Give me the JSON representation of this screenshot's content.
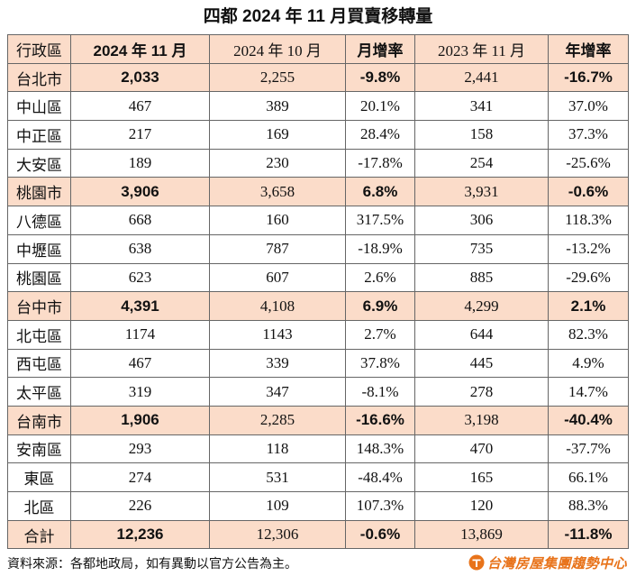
{
  "chart_data": {
    "type": "table",
    "title": "四都 2024 年 11 月買賣移轉量",
    "columns": [
      "行政區",
      "2024 年 11 月",
      "2024 年 10 月",
      "月增率",
      "2023 年 11 月",
      "年增率"
    ],
    "rows": [
      {
        "name": "台北市",
        "values": [
          "2,033",
          "2,255",
          "-9.8%",
          "2,441",
          "-16.7%"
        ],
        "highlight": true
      },
      {
        "name": "中山區",
        "values": [
          "467",
          "389",
          "20.1%",
          "341",
          "37.0%"
        ],
        "highlight": false
      },
      {
        "name": "中正區",
        "values": [
          "217",
          "169",
          "28.4%",
          "158",
          "37.3%"
        ],
        "highlight": false
      },
      {
        "name": "大安區",
        "values": [
          "189",
          "230",
          "-17.8%",
          "254",
          "-25.6%"
        ],
        "highlight": false
      },
      {
        "name": "桃園市",
        "values": [
          "3,906",
          "3,658",
          "6.8%",
          "3,931",
          "-0.6%"
        ],
        "highlight": true
      },
      {
        "name": "八德區",
        "values": [
          "668",
          "160",
          "317.5%",
          "306",
          "118.3%"
        ],
        "highlight": false
      },
      {
        "name": "中壢區",
        "values": [
          "638",
          "787",
          "-18.9%",
          "735",
          "-13.2%"
        ],
        "highlight": false
      },
      {
        "name": "桃園區",
        "values": [
          "623",
          "607",
          "2.6%",
          "885",
          "-29.6%"
        ],
        "highlight": false
      },
      {
        "name": "台中市",
        "values": [
          "4,391",
          "4,108",
          "6.9%",
          "4,299",
          "2.1%"
        ],
        "highlight": true
      },
      {
        "name": "北屯區",
        "values": [
          "1174",
          "1143",
          "2.7%",
          "644",
          "82.3%"
        ],
        "highlight": false
      },
      {
        "name": "西屯區",
        "values": [
          "467",
          "339",
          "37.8%",
          "445",
          "4.9%"
        ],
        "highlight": false
      },
      {
        "name": "太平區",
        "values": [
          "319",
          "347",
          "-8.1%",
          "278",
          "14.7%"
        ],
        "highlight": false
      },
      {
        "name": "台南市",
        "values": [
          "1,906",
          "2,285",
          "-16.6%",
          "3,198",
          "-40.4%"
        ],
        "highlight": true
      },
      {
        "name": "安南區",
        "values": [
          "293",
          "118",
          "148.3%",
          "470",
          "-37.7%"
        ],
        "highlight": false
      },
      {
        "name": "東區",
        "values": [
          "274",
          "531",
          "-48.4%",
          "165",
          "66.1%"
        ],
        "highlight": false
      },
      {
        "name": "北區",
        "values": [
          "226",
          "109",
          "107.3%",
          "120",
          "88.3%"
        ],
        "highlight": false
      },
      {
        "name": "合計",
        "values": [
          "12,236",
          "12,306",
          "-0.6%",
          "13,869",
          "-11.8%"
        ],
        "highlight": true
      }
    ]
  },
  "footer": {
    "source": "資料來源：各都地政局，如有異動以官方公告為主。",
    "logo_text": "台灣房屋集團趨勢中心",
    "logo_icon": "company-logo-icon"
  },
  "colors": {
    "header_bg": "#fbdcc9",
    "highlight_bg": "#fbdcc9",
    "logo": "#e8731a",
    "border": "#666666"
  }
}
